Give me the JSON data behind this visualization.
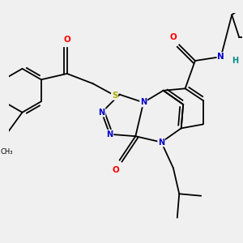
{
  "background_color": "#f0f0f0",
  "atom_colors": {
    "C": "#000000",
    "N": "#0000cc",
    "O": "#ff0000",
    "S": "#aaaa00",
    "H": "#008888"
  },
  "bond_color": "#000000",
  "bond_width": 1.3
}
